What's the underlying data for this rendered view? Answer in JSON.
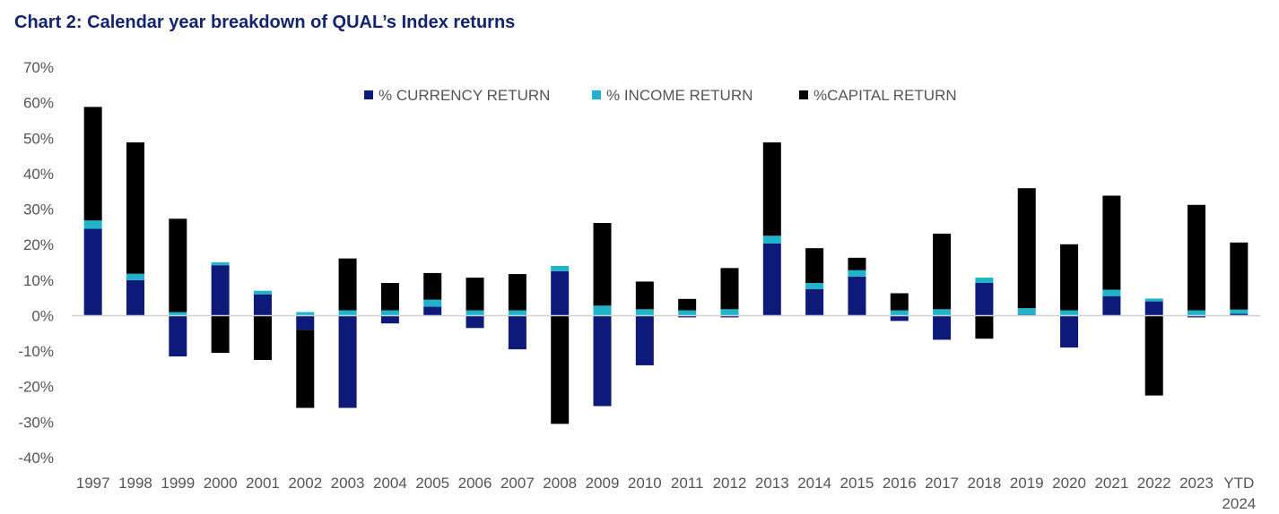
{
  "chart_data": {
    "type": "bar",
    "stacked": true,
    "title": "Chart 2: Calendar year breakdown of QUAL’s Index returns",
    "xlabel": "",
    "ylabel": "",
    "ylim": [
      -40,
      70
    ],
    "yticks": [
      70,
      60,
      50,
      40,
      30,
      20,
      10,
      0,
      -10,
      -20,
      -30,
      -40
    ],
    "ytick_labels": [
      "70%",
      "60%",
      "50%",
      "40%",
      "30%",
      "20%",
      "10%",
      "0%",
      "-10%",
      "-20%",
      "-30%",
      "-40%"
    ],
    "categories": [
      "1997",
      "1998",
      "1999",
      "2000",
      "2001",
      "2002",
      "2003",
      "2004",
      "2005",
      "2006",
      "2007",
      "2008",
      "2009",
      "2010",
      "2011",
      "2012",
      "2013",
      "2014",
      "2015",
      "2016",
      "2017",
      "2018",
      "2019",
      "2020",
      "2021",
      "2022",
      "2023",
      "YTD 2024"
    ],
    "legend_position": "top-center",
    "series": [
      {
        "name": "% CURRENCY RETURN",
        "color": "#0d1a7a",
        "values": [
          24.5,
          10.0,
          -11.5,
          14.2,
          6.0,
          -4.0,
          -26.0,
          -2.2,
          2.5,
          -3.5,
          -9.5,
          12.5,
          -25.5,
          -14.0,
          -0.5,
          -0.5,
          20.3,
          7.5,
          11.0,
          -1.5,
          -6.8,
          9.2,
          0.3,
          -9.0,
          5.5,
          4.0,
          -0.5,
          0.5
        ]
      },
      {
        "name": "% INCOME RETURN",
        "color": "#1fb4c9",
        "values": [
          2.3,
          1.8,
          1.0,
          0.8,
          1.0,
          1.0,
          1.5,
          1.5,
          2.0,
          1.5,
          1.5,
          1.5,
          2.8,
          1.8,
          1.5,
          1.8,
          2.2,
          1.7,
          1.8,
          1.5,
          1.8,
          1.5,
          1.8,
          1.5,
          1.8,
          0.8,
          1.5,
          1.2
        ]
      },
      {
        "name": "%CAPITAL RETURN",
        "color": "#000000",
        "values": [
          32.0,
          37.0,
          26.3,
          -10.5,
          -12.5,
          -22.0,
          14.6,
          7.7,
          7.5,
          9.2,
          10.2,
          -30.5,
          23.3,
          7.8,
          3.2,
          11.6,
          26.3,
          9.8,
          3.5,
          4.8,
          21.3,
          -6.5,
          33.8,
          18.6,
          26.5,
          -22.5,
          29.7,
          18.9
        ]
      }
    ]
  }
}
